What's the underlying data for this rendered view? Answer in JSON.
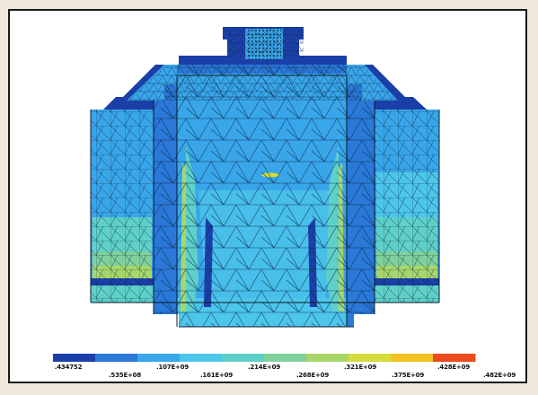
{
  "plot": {
    "contour_colors": [
      "#1b3fa8",
      "#2a78d8",
      "#39a6ea",
      "#4cc6ea",
      "#5fd0c8",
      "#7fd19c",
      "#a9d66a",
      "#d6dc3c",
      "#f2c31e",
      "#ec4a1c"
    ],
    "background_color": "#efe9dc",
    "mesh_line_color": "#0b2b4a"
  },
  "legend": {
    "labels": [
      {
        "text": ".434752",
        "row": "top"
      },
      {
        "text": ".535E+08",
        "row": "bottom"
      },
      {
        "text": ".107E+09",
        "row": "top"
      },
      {
        "text": ".161E+09",
        "row": "bottom"
      },
      {
        "text": ".214E+09",
        "row": "top"
      },
      {
        "text": ".268E+09",
        "row": "bottom"
      },
      {
        "text": ".321E+09",
        "row": "top"
      },
      {
        "text": ".375E+09",
        "row": "bottom"
      },
      {
        "text": ".428E+09",
        "row": "top"
      },
      {
        "text": ".482E+09",
        "row": "bottom"
      }
    ]
  }
}
